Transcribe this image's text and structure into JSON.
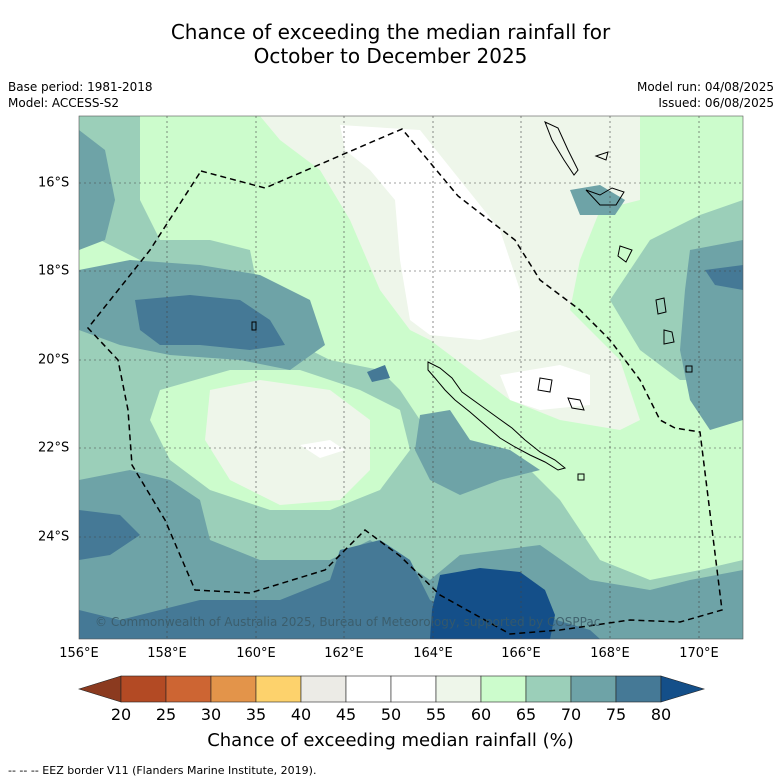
{
  "header": {
    "title_line1": "Chance of exceeding the median rainfall for",
    "title_line2": "October to December 2025"
  },
  "meta": {
    "base_period": "Base period: 1981-2018",
    "model": "Model: ACCESS-S2",
    "model_run": "Model run: 04/08/2025",
    "issued": "Issued: 06/08/2025"
  },
  "axes": {
    "lon_labels": [
      "156°E",
      "158°E",
      "160°E",
      "162°E",
      "164°E",
      "166°E",
      "168°E",
      "170°E"
    ],
    "lat_labels": [
      "16°S",
      "18°S",
      "20°S",
      "22°S",
      "24°S"
    ]
  },
  "colorbar": {
    "ticks": [
      "20",
      "25",
      "30",
      "35",
      "40",
      "45",
      "50",
      "55",
      "60",
      "65",
      "70",
      "75",
      "80"
    ],
    "colors": [
      "#8b3a1f",
      "#b34a24",
      "#cd6533",
      "#e3944a",
      "#fdd26c",
      "#ecebe6",
      "#ffffff",
      "#ffffff",
      "#eef6ea",
      "#ccfccc",
      "#9bcfb9",
      "#6ea3a7",
      "#457996",
      "#144f89"
    ],
    "label": "Chance of exceeding median rainfall (%)"
  },
  "map": {
    "copyright": "© Commonwealth of Australia 2025, Bureau of Meteorology, supported by COSPPac",
    "palette": {
      "c55": "#ffffff",
      "c60": "#eef6ea",
      "c65": "#ccfccc",
      "c70": "#9bcfb9",
      "c75": "#6ea3a7",
      "c80": "#457996",
      "c85": "#144f89"
    }
  },
  "legend": {
    "eez_note": "--  --  -- EEZ border V11 (Flanders Marine Institute, 2019)."
  }
}
